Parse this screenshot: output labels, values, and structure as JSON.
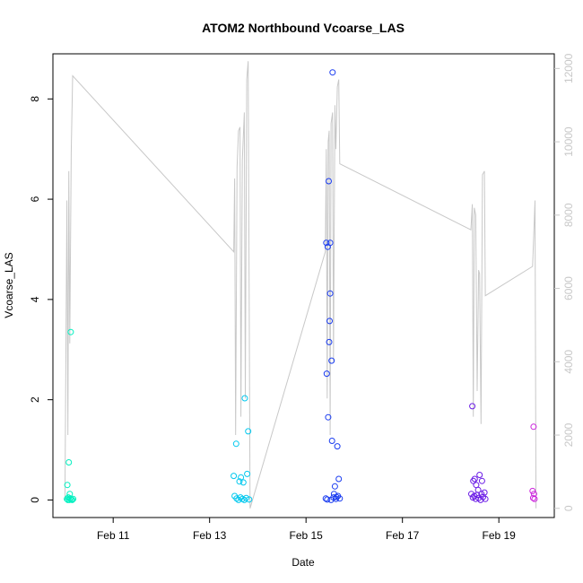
{
  "chart_data": {
    "type": "scatter",
    "title": "ATOM2 Northbound Vcoarse_LAS",
    "xlabel": "Date",
    "ylabel": "Vcoarse_LAS",
    "x_ticks": [
      "Feb 11",
      "Feb 13",
      "Feb 15",
      "Feb 17",
      "Feb 19"
    ],
    "x_tick_days": [
      11,
      13,
      15,
      17,
      19
    ],
    "xlim_days": [
      9.75,
      20.15
    ],
    "ylim": [
      -0.35,
      8.9
    ],
    "y_ticks": [
      0,
      2,
      4,
      6,
      8
    ],
    "y2lim": [
      -250,
      12400
    ],
    "y2_ticks": [
      0,
      2000,
      4000,
      6000,
      8000,
      10000,
      12000
    ],
    "y2_color": "#c8c8c8",
    "line_color": "#c8c8c8",
    "series": [
      {
        "color": "#00f0c0",
        "points": [
          [
            10.05,
            0.3
          ],
          [
            10.08,
            0.75
          ],
          [
            10.1,
            0.12
          ],
          [
            10.12,
            3.35
          ],
          [
            10.04,
            0.02
          ],
          [
            10.06,
            0.0
          ],
          [
            10.09,
            0.0
          ],
          [
            10.11,
            0.03
          ],
          [
            10.13,
            0.01
          ],
          [
            10.15,
            0.0
          ],
          [
            10.17,
            0.02
          ],
          [
            10.07,
            0.05
          ]
        ]
      },
      {
        "color": "#00c8ee",
        "points": [
          [
            13.5,
            0.48
          ],
          [
            13.55,
            1.12
          ],
          [
            13.62,
            0.37
          ],
          [
            13.65,
            0.45
          ],
          [
            13.7,
            0.35
          ],
          [
            13.73,
            2.03
          ],
          [
            13.78,
            0.52
          ],
          [
            13.8,
            1.37
          ],
          [
            13.52,
            0.08
          ],
          [
            13.56,
            0.03
          ],
          [
            13.6,
            0.0
          ],
          [
            13.64,
            0.05
          ],
          [
            13.68,
            0.02
          ],
          [
            13.72,
            0.0
          ],
          [
            13.76,
            0.04
          ],
          [
            13.82,
            0.01
          ]
        ]
      },
      {
        "color": "#1a3cf0",
        "points": [
          [
            15.42,
            5.13
          ],
          [
            15.45,
            5.05
          ],
          [
            15.47,
            6.36
          ],
          [
            15.5,
            5.13
          ],
          [
            15.55,
            8.53
          ],
          [
            15.5,
            4.12
          ],
          [
            15.49,
            3.57
          ],
          [
            15.48,
            3.15
          ],
          [
            15.53,
            2.78
          ],
          [
            15.43,
            2.52
          ],
          [
            15.46,
            1.65
          ],
          [
            15.54,
            1.18
          ],
          [
            15.65,
            1.07
          ],
          [
            15.68,
            0.42
          ],
          [
            15.6,
            0.27
          ],
          [
            15.41,
            0.03
          ],
          [
            15.44,
            0.01
          ],
          [
            15.52,
            0.0
          ],
          [
            15.57,
            0.05
          ],
          [
            15.62,
            0.02
          ],
          [
            15.66,
            0.08
          ],
          [
            15.7,
            0.03
          ],
          [
            15.58,
            0.12
          ],
          [
            15.63,
            0.06
          ]
        ]
      },
      {
        "color": "#6a1ae6",
        "points": [
          [
            18.45,
            1.87
          ],
          [
            18.47,
            0.38
          ],
          [
            18.5,
            0.42
          ],
          [
            18.53,
            0.3
          ],
          [
            18.57,
            0.2
          ],
          [
            18.6,
            0.5
          ],
          [
            18.65,
            0.38
          ],
          [
            18.7,
            0.15
          ],
          [
            18.43,
            0.12
          ],
          [
            18.46,
            0.05
          ],
          [
            18.49,
            0.08
          ],
          [
            18.52,
            0.02
          ],
          [
            18.55,
            0.1
          ],
          [
            18.58,
            0.04
          ],
          [
            18.62,
            0.0
          ],
          [
            18.67,
            0.06
          ],
          [
            18.72,
            0.02
          ],
          [
            18.64,
            0.12
          ]
        ]
      },
      {
        "color": "#cc22dd",
        "points": [
          [
            19.72,
            1.46
          ],
          [
            19.7,
            0.18
          ],
          [
            19.73,
            0.12
          ],
          [
            19.71,
            0.04
          ],
          [
            19.74,
            0.02
          ]
        ]
      }
    ],
    "line_series": {
      "axis": "right",
      "points": [
        [
          10.0,
          200
        ],
        [
          10.04,
          8400
        ],
        [
          10.06,
          2000
        ],
        [
          10.08,
          9200
        ],
        [
          10.1,
          4500
        ],
        [
          10.13,
          9700
        ],
        [
          10.16,
          11800
        ],
        [
          13.5,
          7000
        ],
        [
          13.52,
          9000
        ],
        [
          13.54,
          2000
        ],
        [
          13.57,
          9300
        ],
        [
          13.6,
          10300
        ],
        [
          13.63,
          10400
        ],
        [
          13.65,
          2500
        ],
        [
          13.68,
          9500
        ],
        [
          13.72,
          10800
        ],
        [
          13.74,
          3000
        ],
        [
          13.77,
          11700
        ],
        [
          13.8,
          12200
        ],
        [
          13.84,
          0
        ],
        [
          15.4,
          7000
        ],
        [
          15.42,
          9800
        ],
        [
          15.44,
          3000
        ],
        [
          15.46,
          10000
        ],
        [
          15.48,
          10300
        ],
        [
          15.5,
          2000
        ],
        [
          15.52,
          10500
        ],
        [
          15.55,
          10800
        ],
        [
          15.57,
          4000
        ],
        [
          15.6,
          11000
        ],
        [
          15.62,
          9800
        ],
        [
          15.65,
          11500
        ],
        [
          15.68,
          11700
        ],
        [
          15.7,
          9400
        ],
        [
          18.42,
          7600
        ],
        [
          18.45,
          8300
        ],
        [
          18.47,
          2500
        ],
        [
          18.49,
          8200
        ],
        [
          18.52,
          8000
        ],
        [
          18.55,
          3200
        ],
        [
          18.58,
          6500
        ],
        [
          18.6,
          6400
        ],
        [
          18.63,
          2300
        ],
        [
          18.66,
          9100
        ],
        [
          18.7,
          9200
        ],
        [
          18.72,
          5800
        ],
        [
          19.7,
          6600
        ],
        [
          19.75,
          8400
        ],
        [
          19.77,
          0
        ]
      ]
    }
  }
}
